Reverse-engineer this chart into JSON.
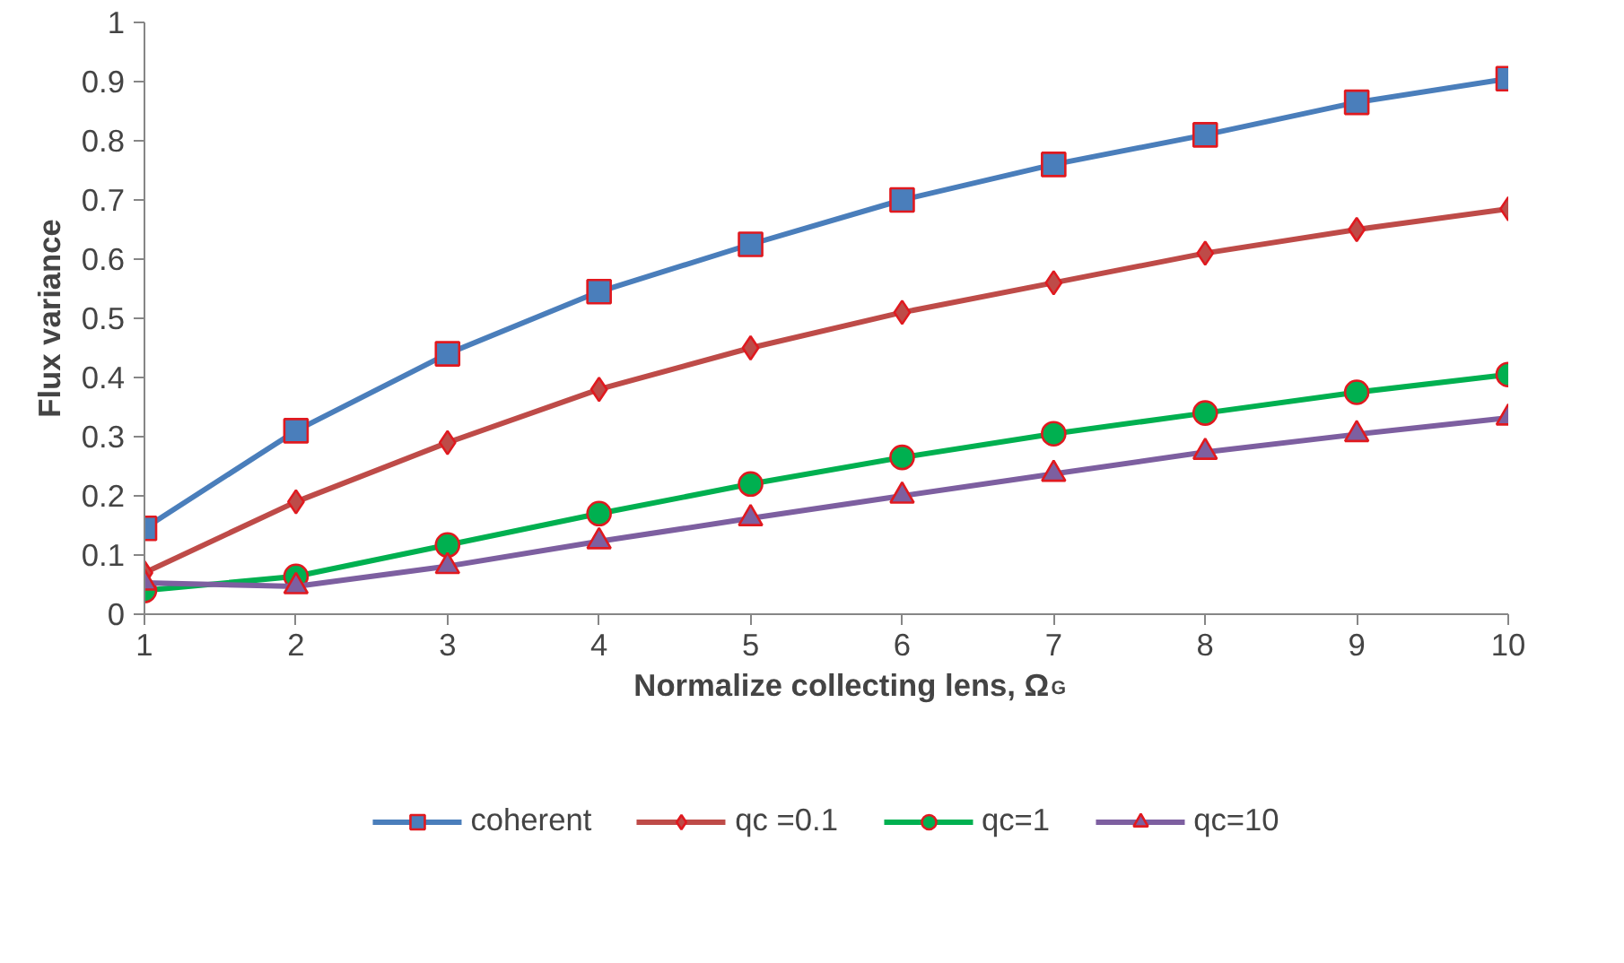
{
  "chart_data": {
    "type": "line",
    "xlabel": "Normalize collecting lens, Ω$_{G}$",
    "ylabel": "Flux variance",
    "x": [
      1,
      2,
      3,
      4,
      5,
      6,
      7,
      8,
      9,
      10
    ],
    "series": [
      {
        "name": "coherent",
        "color": "#4a7ebb",
        "marker": "square",
        "values": [
          0.145,
          0.31,
          0.44,
          0.545,
          0.625,
          0.7,
          0.76,
          0.81,
          0.865,
          0.905
        ]
      },
      {
        "name": "qc =0.1",
        "color": "#be4b48",
        "marker": "diamond",
        "values": [
          0.07,
          0.19,
          0.29,
          0.38,
          0.45,
          0.51,
          0.56,
          0.61,
          0.65,
          0.685
        ]
      },
      {
        "name": "qc=1",
        "color": "#00b050",
        "marker": "circle",
        "values": [
          0.04,
          0.064,
          0.117,
          0.17,
          0.22,
          0.265,
          0.305,
          0.34,
          0.375,
          0.405
        ]
      },
      {
        "name": "qc=10",
        "color": "#7d5fa0",
        "marker": "triangle",
        "values": [
          0.053,
          0.047,
          0.081,
          0.123,
          0.162,
          0.2,
          0.237,
          0.274,
          0.304,
          0.332
        ]
      }
    ],
    "xlim": [
      1,
      10
    ],
    "ylim": [
      0,
      1
    ],
    "xticks": [
      1,
      2,
      3,
      4,
      5,
      6,
      7,
      8,
      9,
      10
    ],
    "yticks": [
      0,
      0.1,
      0.2,
      0.3,
      0.4,
      0.5,
      0.6,
      0.7,
      0.8,
      0.9,
      1
    ],
    "grid": false,
    "legend": "bottom",
    "line_style": "solid"
  }
}
